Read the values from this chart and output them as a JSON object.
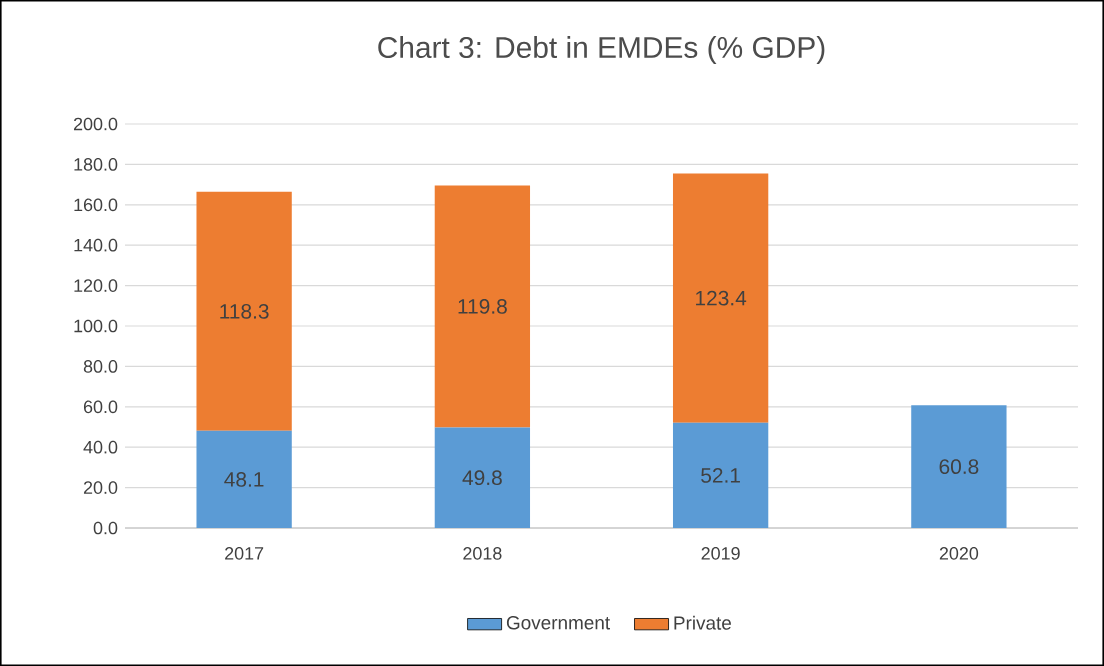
{
  "chart_data": {
    "type": "bar",
    "title": "Chart 3: Debt in EMDEs (% GDP)",
    "stacked": true,
    "categories": [
      "2017",
      "2018",
      "2019",
      "2020"
    ],
    "series": [
      {
        "name": "Government",
        "color": "#5b9bd5",
        "values": [
          48.1,
          49.8,
          52.1,
          60.8
        ]
      },
      {
        "name": "Private",
        "color": "#ed7d31",
        "values": [
          118.3,
          119.8,
          123.4,
          null
        ]
      }
    ],
    "ylim": [
      0,
      200
    ],
    "yticks": [
      {
        "value": 0,
        "label": "0.0"
      },
      {
        "value": 20,
        "label": "20.0"
      },
      {
        "value": 40,
        "label": "40.0"
      },
      {
        "value": 60,
        "label": "60.0"
      },
      {
        "value": 80,
        "label": "80.0"
      },
      {
        "value": 100,
        "label": "100.0"
      },
      {
        "value": 120,
        "label": "120.0"
      },
      {
        "value": 140,
        "label": "140.0"
      },
      {
        "value": 160,
        "label": "160.0"
      },
      {
        "value": 180,
        "label": "180.0"
      },
      {
        "value": 200,
        "label": "200.0"
      }
    ],
    "grid": "y",
    "legend": "bottom",
    "data_labels": true
  }
}
